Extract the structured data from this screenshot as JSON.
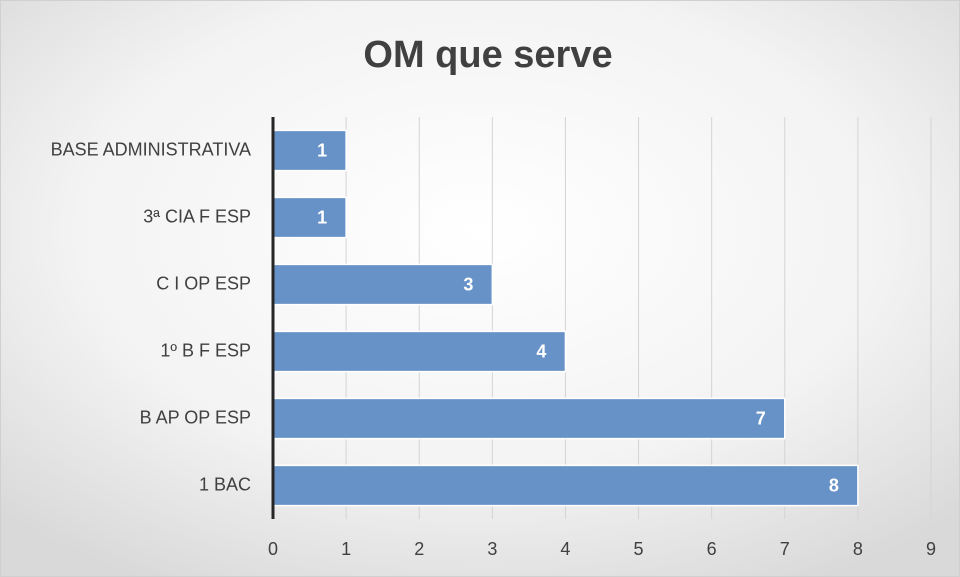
{
  "chart_data": {
    "type": "bar",
    "orientation": "horizontal",
    "title": "OM que serve",
    "categories": [
      "BASE ADMINISTRATIVA",
      "3ª CIA F ESP",
      "C I OP ESP",
      "1º B F ESP",
      "B AP OP ESP",
      "1 BAC"
    ],
    "values": [
      1,
      1,
      3,
      4,
      7,
      8
    ],
    "color": "#6792c8",
    "xlim": [
      0,
      9
    ],
    "xticks": [
      0,
      1,
      2,
      3,
      4,
      5,
      6,
      7,
      8,
      9
    ],
    "grid": true
  }
}
